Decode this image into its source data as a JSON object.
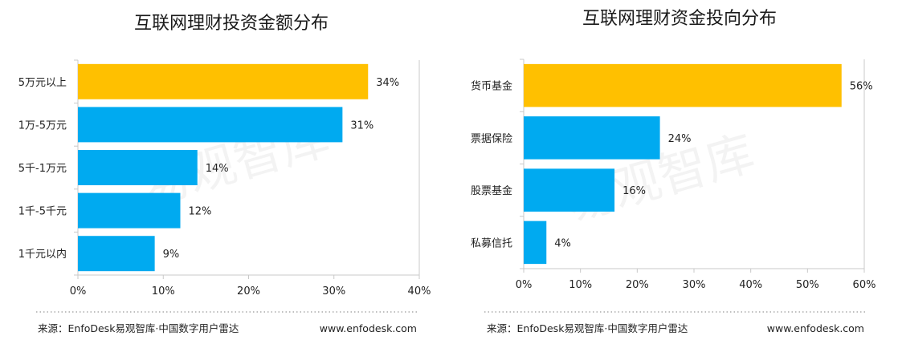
{
  "colors": {
    "highlight": "#FFC000",
    "normal": "#00AAF0"
  },
  "chart_data": [
    {
      "type": "bar",
      "orientation": "horizontal",
      "title": "互联网理财投资金额分布",
      "categories": [
        "5万元以上",
        "1万-5万元",
        "5千-1万元",
        "1千-5千元",
        "1千元以内"
      ],
      "values": [
        34,
        31,
        14,
        12,
        9
      ],
      "value_labels": [
        "34%",
        "31%",
        "14%",
        "12%",
        "9%"
      ],
      "highlight_index": 0,
      "xlim": [
        0,
        40
      ],
      "xticks": [
        "0%",
        "10%",
        "20%",
        "30%",
        "40%"
      ],
      "grid": false
    },
    {
      "type": "bar",
      "orientation": "horizontal",
      "title": "互联网理财资金投向分布",
      "categories": [
        "货币基金",
        "票据保险",
        "股票基金",
        "私募信托"
      ],
      "values": [
        56,
        24,
        16,
        4
      ],
      "value_labels": [
        "56%",
        "24%",
        "16%",
        "4%"
      ],
      "highlight_index": 0,
      "xlim": [
        0,
        60
      ],
      "xticks": [
        "0%",
        "10%",
        "20%",
        "30%",
        "40%",
        "50%",
        "60%"
      ],
      "grid": false
    }
  ],
  "footer": {
    "source_left": "来源：EnfoDesk易观智库·中国数字用户雷达",
    "url_left": "www.enfodesk.com",
    "source_right": "来源：EnfoDesk易观智库·中国数字用户雷达",
    "url_right": "www.enfodesk.com"
  },
  "watermark": "易观智库"
}
